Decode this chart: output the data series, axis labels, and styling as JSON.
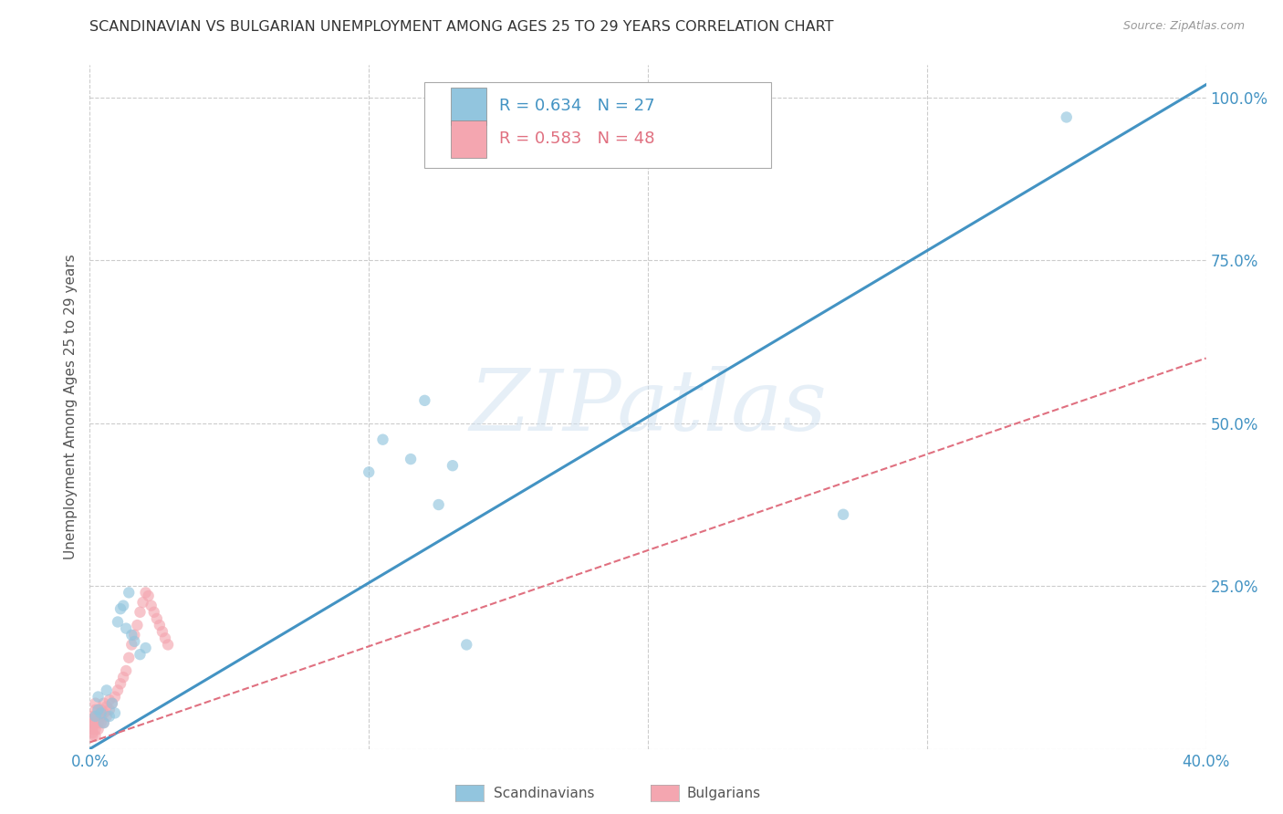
{
  "title": "SCANDINAVIAN VS BULGARIAN UNEMPLOYMENT AMONG AGES 25 TO 29 YEARS CORRELATION CHART",
  "source": "Source: ZipAtlas.com",
  "ylabel": "Unemployment Among Ages 25 to 29 years",
  "xlim": [
    0.0,
    0.4
  ],
  "ylim": [
    0.0,
    1.05
  ],
  "xticks": [
    0.0,
    0.1,
    0.2,
    0.3,
    0.4
  ],
  "yticks": [
    0.0,
    0.25,
    0.5,
    0.75,
    1.0
  ],
  "xtick_labels": [
    "0.0%",
    "",
    "",
    "",
    "40.0%"
  ],
  "ytick_labels_right": [
    "",
    "25.0%",
    "50.0%",
    "75.0%",
    "100.0%"
  ],
  "blue_color": "#92c5de",
  "pink_color": "#f4a6b0",
  "blue_line_color": "#4393c3",
  "pink_line_color": "#e07080",
  "grid_color": "#cccccc",
  "background_color": "#ffffff",
  "watermark_text": "ZIPatlas",
  "legend_R_blue": "R = 0.634",
  "legend_N_blue": "N = 27",
  "legend_R_pink": "R = 0.583",
  "legend_N_pink": "N = 48",
  "legend_label_blue": "Scandinavians",
  "legend_label_pink": "Bulgarians",
  "blue_x": [
    0.002,
    0.003,
    0.003,
    0.004,
    0.005,
    0.006,
    0.007,
    0.008,
    0.009,
    0.01,
    0.011,
    0.012,
    0.013,
    0.014,
    0.015,
    0.016,
    0.018,
    0.02,
    0.1,
    0.105,
    0.115,
    0.12,
    0.125,
    0.13,
    0.135,
    0.27,
    0.35
  ],
  "blue_y": [
    0.05,
    0.06,
    0.08,
    0.055,
    0.04,
    0.09,
    0.05,
    0.07,
    0.055,
    0.195,
    0.215,
    0.22,
    0.185,
    0.24,
    0.175,
    0.165,
    0.145,
    0.155,
    0.425,
    0.475,
    0.445,
    0.535,
    0.375,
    0.435,
    0.16,
    0.36,
    0.97
  ],
  "pink_x": [
    0.001,
    0.001,
    0.001,
    0.001,
    0.001,
    0.001,
    0.001,
    0.002,
    0.002,
    0.002,
    0.002,
    0.002,
    0.002,
    0.003,
    0.003,
    0.003,
    0.003,
    0.004,
    0.004,
    0.004,
    0.005,
    0.005,
    0.005,
    0.006,
    0.006,
    0.007,
    0.007,
    0.008,
    0.009,
    0.01,
    0.011,
    0.012,
    0.013,
    0.014,
    0.015,
    0.016,
    0.017,
    0.018,
    0.019,
    0.02,
    0.021,
    0.022,
    0.023,
    0.024,
    0.025,
    0.026,
    0.027,
    0.028
  ],
  "pink_y": [
    0.02,
    0.025,
    0.03,
    0.035,
    0.04,
    0.045,
    0.05,
    0.02,
    0.03,
    0.04,
    0.05,
    0.06,
    0.07,
    0.03,
    0.04,
    0.05,
    0.06,
    0.04,
    0.05,
    0.06,
    0.04,
    0.055,
    0.07,
    0.05,
    0.065,
    0.06,
    0.075,
    0.07,
    0.08,
    0.09,
    0.1,
    0.11,
    0.12,
    0.14,
    0.16,
    0.175,
    0.19,
    0.21,
    0.225,
    0.24,
    0.235,
    0.22,
    0.21,
    0.2,
    0.19,
    0.18,
    0.17,
    0.16
  ],
  "blue_line": [
    0.0,
    0.4,
    0.0,
    1.02
  ],
  "pink_line": [
    0.0,
    0.4,
    0.01,
    0.6
  ],
  "title_fontsize": 11.5,
  "marker_size": 80,
  "marker_alpha": 0.65
}
